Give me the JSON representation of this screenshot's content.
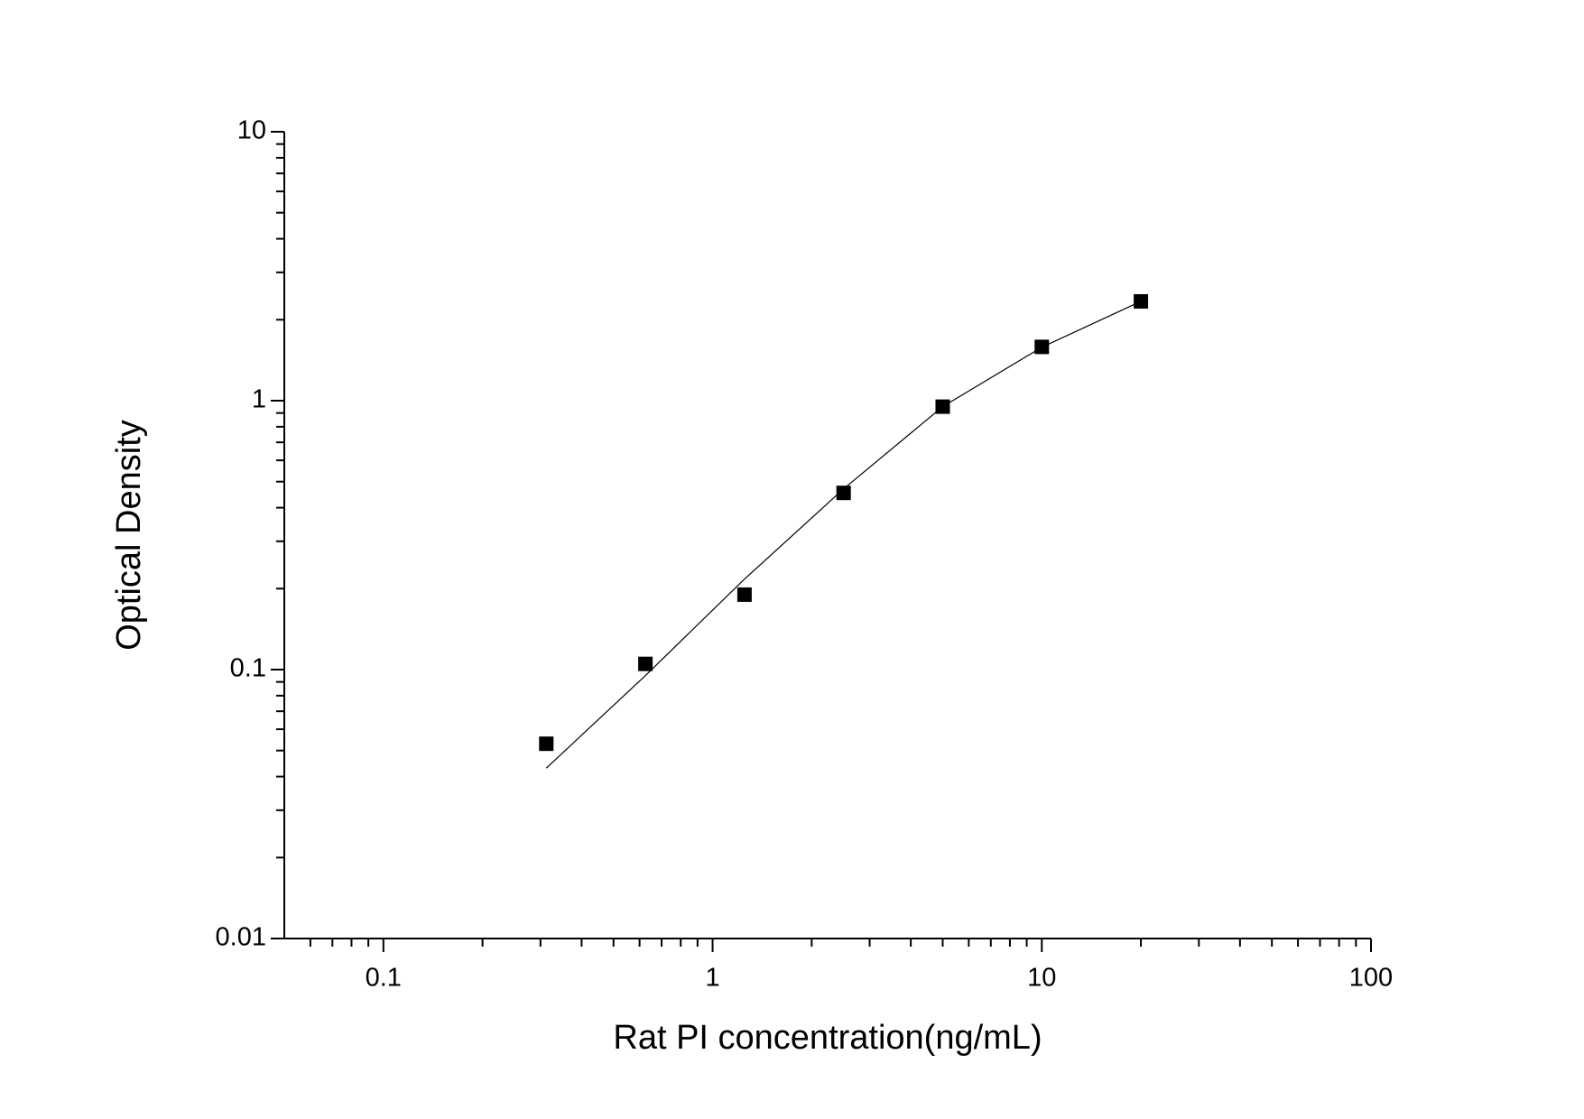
{
  "chart_data": {
    "type": "scatter",
    "x_label": "Rat PI concentration(ng/mL)",
    "y_label": "Optical Density",
    "x_log": true,
    "y_log": true,
    "xlim": [
      0.05,
      100
    ],
    "ylim": [
      0.01,
      10
    ],
    "xticks": [
      0.1,
      1,
      10,
      100
    ],
    "yticks": [
      0.01,
      0.1,
      1,
      10
    ],
    "xminorticks": [
      0.06,
      0.07,
      0.08,
      0.09,
      0.2,
      0.3,
      0.4,
      0.5,
      0.6,
      0.7,
      0.8,
      0.9,
      2,
      3,
      4,
      5,
      6,
      7,
      8,
      9,
      20,
      30,
      40,
      50,
      60,
      70,
      80,
      90
    ],
    "yminorticks": [
      0.02,
      0.03,
      0.04,
      0.05,
      0.06,
      0.07,
      0.08,
      0.09,
      0.2,
      0.3,
      0.4,
      0.5,
      0.6,
      0.7,
      0.8,
      0.9,
      2,
      3,
      4,
      5,
      6,
      7,
      8,
      9
    ],
    "series": [
      {
        "type": "scatter",
        "color": "#000000",
        "x": [
          0.3125,
          0.625,
          1.25,
          2.5,
          5,
          10,
          20
        ],
        "values": [
          0.053,
          0.105,
          0.19,
          0.454,
          0.95,
          1.585,
          2.34
        ]
      },
      {
        "type": "line",
        "color": "#000000",
        "x": [
          0.3125,
          0.625,
          1.25,
          2.5,
          5,
          10,
          20
        ],
        "values": [
          0.043,
          0.095,
          0.217,
          0.47,
          0.95,
          1.58,
          2.34
        ]
      }
    ]
  }
}
